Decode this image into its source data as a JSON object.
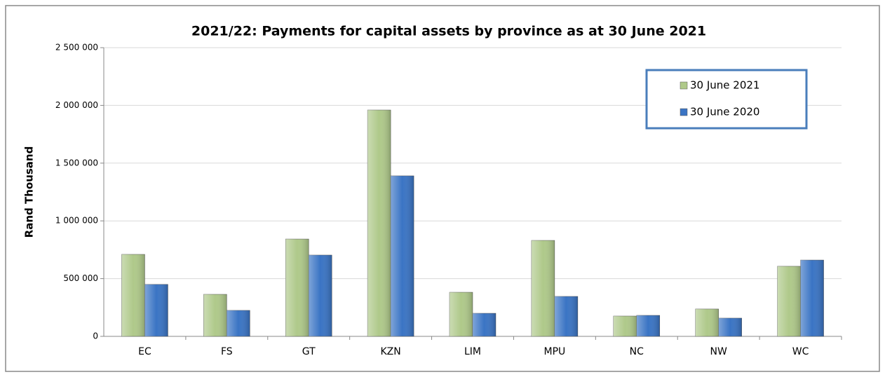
{
  "chart_data": {
    "type": "bar",
    "title": "2021/22: Payments for capital assets by province as at 30 June 2021",
    "y_label": "Rand Thousand",
    "categories": [
      "EC",
      "FS",
      "GT",
      "KZN",
      "LIM",
      "MPU",
      "NC",
      "NW",
      "WC"
    ],
    "series": [
      {
        "name": "30 June 2021",
        "color": "#afc98a",
        "values": [
          710000,
          364000,
          843000,
          1960000,
          382000,
          831000,
          176000,
          237000,
          607000
        ]
      },
      {
        "name": "30 June 2020",
        "color": "#3a74c4",
        "values": [
          450000,
          225000,
          704000,
          1390000,
          200000,
          346000,
          182000,
          158000,
          661000
        ]
      }
    ],
    "ylim": [
      0,
      2500000
    ],
    "yticks": [
      0,
      {
        "value": 500000,
        "label": "500 000"
      },
      {
        "value": 1000000,
        "label": "1 000 000"
      },
      {
        "value": 1500000,
        "label": "1 500 000"
      },
      {
        "value": 2000000,
        "label": "2 000 000"
      },
      {
        "value": 2500000,
        "label": "2 500 000"
      }
    ],
    "grid": true,
    "legend": "top-right"
  }
}
